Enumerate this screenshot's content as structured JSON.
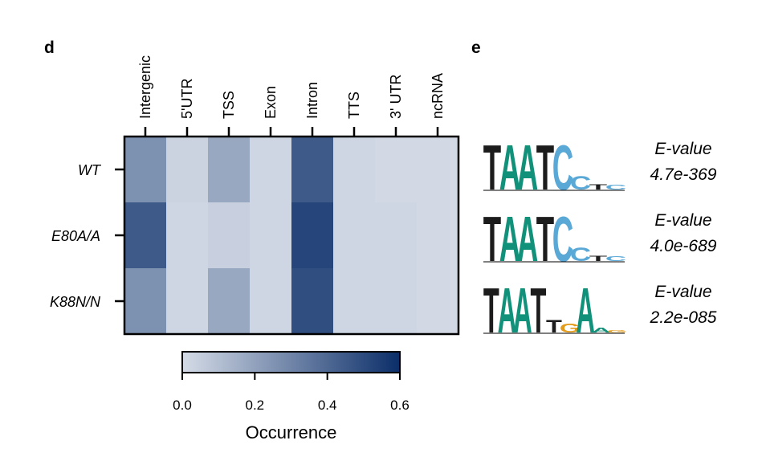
{
  "panels": {
    "heatmap_letter": "d",
    "logo_letter": "e"
  },
  "chart_data": [
    {
      "type": "heatmap",
      "columns": [
        "Intergenic",
        "5'UTR",
        "TSS",
        "Exon",
        "Intron",
        "TTS",
        "3' UTR",
        "ncRNA"
      ],
      "rows": [
        "WT",
        "E80A/A",
        "K88N/N"
      ],
      "values": [
        [
          0.26,
          0.03,
          0.18,
          0.02,
          0.45,
          0.02,
          0.01,
          0.01
        ],
        [
          0.45,
          0.02,
          0.04,
          0.02,
          0.52,
          0.02,
          0.02,
          0.01
        ],
        [
          0.26,
          0.02,
          0.18,
          0.02,
          0.49,
          0.02,
          0.02,
          0.01
        ]
      ],
      "colorbar": {
        "label": "Occurrence",
        "vmin": 0.0,
        "vmax": 0.6,
        "ticks": [
          "0.0",
          "0.2",
          "0.4",
          "0.6"
        ],
        "color_low": "#d5dce7",
        "color_high": "#0b2e69"
      }
    }
  ],
  "motif_logos": [
    {
      "consensus": "TAATCC",
      "evalue_label": "E-value",
      "evalue": "4.7e-369",
      "letters": [
        {
          "char": "T",
          "color": "#1c1c1c",
          "height": 1.0
        },
        {
          "char": "A",
          "color": "#12917a",
          "height": 1.0
        },
        {
          "char": "A",
          "color": "#12917a",
          "height": 1.0
        },
        {
          "char": "T",
          "color": "#1c1c1c",
          "height": 1.0
        },
        {
          "char": "C",
          "color": "#5aa8d6",
          "height": 1.0
        },
        {
          "char": "C",
          "color": "#5aa8d6",
          "height": 0.3
        },
        {
          "char": "T",
          "color": "#1c1c1c",
          "height": 0.12
        },
        {
          "char": "C",
          "color": "#5aa8d6",
          "height": 0.1
        }
      ]
    },
    {
      "consensus": "TAATCC",
      "evalue_label": "E-value",
      "evalue": "4.0e-689",
      "letters": [
        {
          "char": "T",
          "color": "#1c1c1c",
          "height": 1.0
        },
        {
          "char": "A",
          "color": "#12917a",
          "height": 1.0
        },
        {
          "char": "A",
          "color": "#12917a",
          "height": 1.0
        },
        {
          "char": "T",
          "color": "#1c1c1c",
          "height": 1.0
        },
        {
          "char": "C",
          "color": "#5aa8d6",
          "height": 1.0
        },
        {
          "char": "C",
          "color": "#5aa8d6",
          "height": 0.3
        },
        {
          "char": "T",
          "color": "#1c1c1c",
          "height": 0.12
        },
        {
          "char": "C",
          "color": "#5aa8d6",
          "height": 0.1
        }
      ]
    },
    {
      "consensus": "TAATTA",
      "evalue_label": "E-value",
      "evalue": "2.2e-085",
      "letters": [
        {
          "char": "T",
          "color": "#1c1c1c",
          "height": 1.0
        },
        {
          "char": "A",
          "color": "#12917a",
          "height": 1.0
        },
        {
          "char": "A",
          "color": "#12917a",
          "height": 1.0
        },
        {
          "char": "T",
          "color": "#1c1c1c",
          "height": 1.0
        },
        {
          "char": "T",
          "color": "#1c1c1c",
          "height": 0.28
        },
        {
          "char": "G",
          "color": "#e39b1b",
          "height": 0.2
        },
        {
          "char": "A",
          "color": "#12917a",
          "height": 1.0
        },
        {
          "char": "A",
          "color": "#12917a",
          "height": 0.1
        },
        {
          "char": "G",
          "color": "#e39b1b",
          "height": 0.06
        }
      ]
    }
  ]
}
